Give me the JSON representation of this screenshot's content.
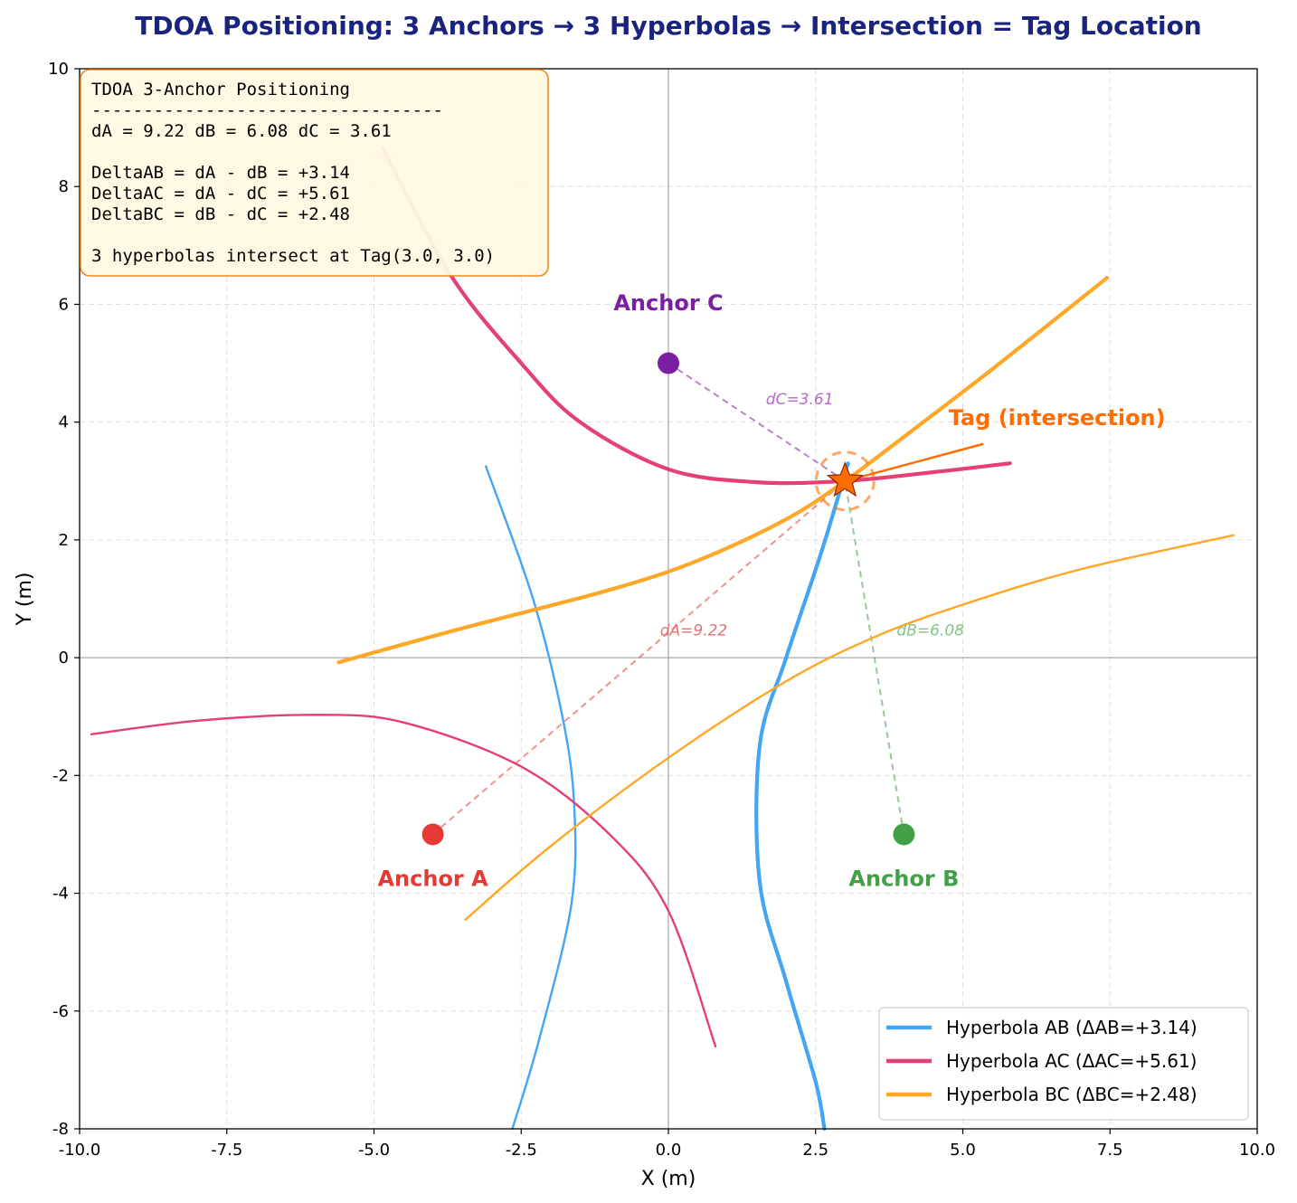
{
  "chart_data": {
    "type": "line",
    "title": "TDOA Positioning: 3 Anchors  →  3 Hyperbolas  →  Intersection = Tag Location",
    "xlabel": "X (m)",
    "ylabel": "Y (m)",
    "xlim": [
      -10,
      10
    ],
    "ylim": [
      -8,
      10
    ],
    "xticks": [
      -10,
      -7.5,
      -5,
      -2.5,
      0,
      2.5,
      5,
      7.5,
      10
    ],
    "xtick_labels": [
      "-10.0",
      "-7.5",
      "-5.0",
      "-2.5",
      "0.0",
      "2.5",
      "5.0",
      "7.5",
      "10.0"
    ],
    "yticks": [
      -8,
      -6,
      -4,
      -2,
      0,
      2,
      4,
      6,
      8,
      10
    ],
    "ytick_labels": [
      "-8",
      "-6",
      "-4",
      "-2",
      "0",
      "2",
      "4",
      "6",
      "8",
      "10"
    ],
    "grid": true,
    "legend_position": "bottom-right",
    "anchors": [
      {
        "label": "Anchor A",
        "x": -4,
        "y": -3,
        "color": "#e53935",
        "label_x": -4,
        "label_y": -3.88
      },
      {
        "label": "Anchor B",
        "x": 4,
        "y": -3,
        "color": "#43a047",
        "label_x": 4,
        "label_y": -3.88
      },
      {
        "label": "Anchor C",
        "x": 0,
        "y": 5,
        "color": "#7b1fa2",
        "label_x": 0,
        "label_y": 5.9
      }
    ],
    "tag": {
      "x": 3,
      "y": 3,
      "label": "Tag (intersection)",
      "color": "#ff6d00",
      "label_x": 6.6,
      "label_y": 3.95,
      "arrow_start": [
        5.35,
        3.63
      ]
    },
    "distance_labels": [
      {
        "text": "dA=9.22",
        "x": 0.43,
        "y": 0.38,
        "color": "#e57373"
      },
      {
        "text": "dB=6.08",
        "x": 4.45,
        "y": 0.38,
        "color": "#81c784"
      },
      {
        "text": "dC=3.61",
        "x": 2.23,
        "y": 4.3,
        "color": "#ba68c8"
      }
    ],
    "series": [
      {
        "name": "Hyperbola AB  (ΔAB=+3.14)",
        "color": "#42a5f5",
        "branches": [
          {
            "width": "thick",
            "points": [
              [
                3.05,
                3.3
              ],
              [
                2.6,
                1.8
              ],
              [
                2.0,
                0.0
              ],
              [
                1.55,
                -1.5
              ],
              [
                1.55,
                -3.8
              ],
              [
                2.0,
                -5.5
              ],
              [
                2.5,
                -7.2
              ],
              [
                2.65,
                -8.0
              ]
            ]
          },
          {
            "width": "thin",
            "points": [
              [
                -3.1,
                3.25
              ],
              [
                -2.3,
                1.0
              ],
              [
                -1.8,
                -1.0
              ],
              [
                -1.6,
                -2.5
              ],
              [
                -1.65,
                -4.2
              ],
              [
                -2.2,
                -6.5
              ],
              [
                -2.65,
                -8.0
              ]
            ]
          }
        ]
      },
      {
        "name": "Hyperbola AC  (ΔAC=+5.61)",
        "color": "#e53f78",
        "branches": [
          {
            "width": "thick",
            "points": [
              [
                -4.85,
                8.65
              ],
              [
                -3.7,
                6.5
              ],
              [
                -2.5,
                5.0
              ],
              [
                -1.5,
                4.0
              ],
              [
                0.0,
                3.2
              ],
              [
                1.5,
                2.98
              ],
              [
                3.0,
                3.0
              ],
              [
                4.5,
                3.15
              ],
              [
                5.8,
                3.3
              ]
            ]
          },
          {
            "width": "thin",
            "points": [
              [
                -9.8,
                -1.3
              ],
              [
                -8.0,
                -1.07
              ],
              [
                -6.0,
                -0.97
              ],
              [
                -4.5,
                -1.1
              ],
              [
                -2.5,
                -1.85
              ],
              [
                -1.0,
                -3.0
              ],
              [
                0.0,
                -4.3
              ],
              [
                0.8,
                -6.6
              ]
            ]
          }
        ]
      },
      {
        "name": "Hyperbola BC  (ΔBC=+2.48)",
        "color": "#ffa726",
        "branches": [
          {
            "width": "thick",
            "points": [
              [
                -5.6,
                -0.08
              ],
              [
                -3.5,
                0.5
              ],
              [
                -1.0,
                1.15
              ],
              [
                0.5,
                1.65
              ],
              [
                2.0,
                2.35
              ],
              [
                3.0,
                3.0
              ],
              [
                4.0,
                3.75
              ],
              [
                5.5,
                4.9
              ],
              [
                7.45,
                6.45
              ]
            ]
          },
          {
            "width": "thin",
            "points": [
              [
                -3.45,
                -4.45
              ],
              [
                -2.0,
                -3.2
              ],
              [
                0.0,
                -1.7
              ],
              [
                2.0,
                -0.4
              ],
              [
                3.5,
                0.35
              ],
              [
                5.0,
                0.9
              ],
              [
                7.0,
                1.5
              ],
              [
                9.6,
                2.08
              ]
            ]
          }
        ]
      }
    ],
    "info_box": {
      "lines": [
        "TDOA 3-Anchor Positioning",
        "----------------------------------",
        "dA = 9.22    dB = 6.08    dC = 3.61",
        "",
        "DeltaAB = dA - dB = +3.14",
        "DeltaAC = dA - dC = +5.61",
        "DeltaBC = dB - dC = +2.48",
        "",
        "3 hyperbolas intersect at Tag(3.0, 3.0)"
      ],
      "background": "#fff8e1",
      "border": "#f57f17"
    }
  }
}
